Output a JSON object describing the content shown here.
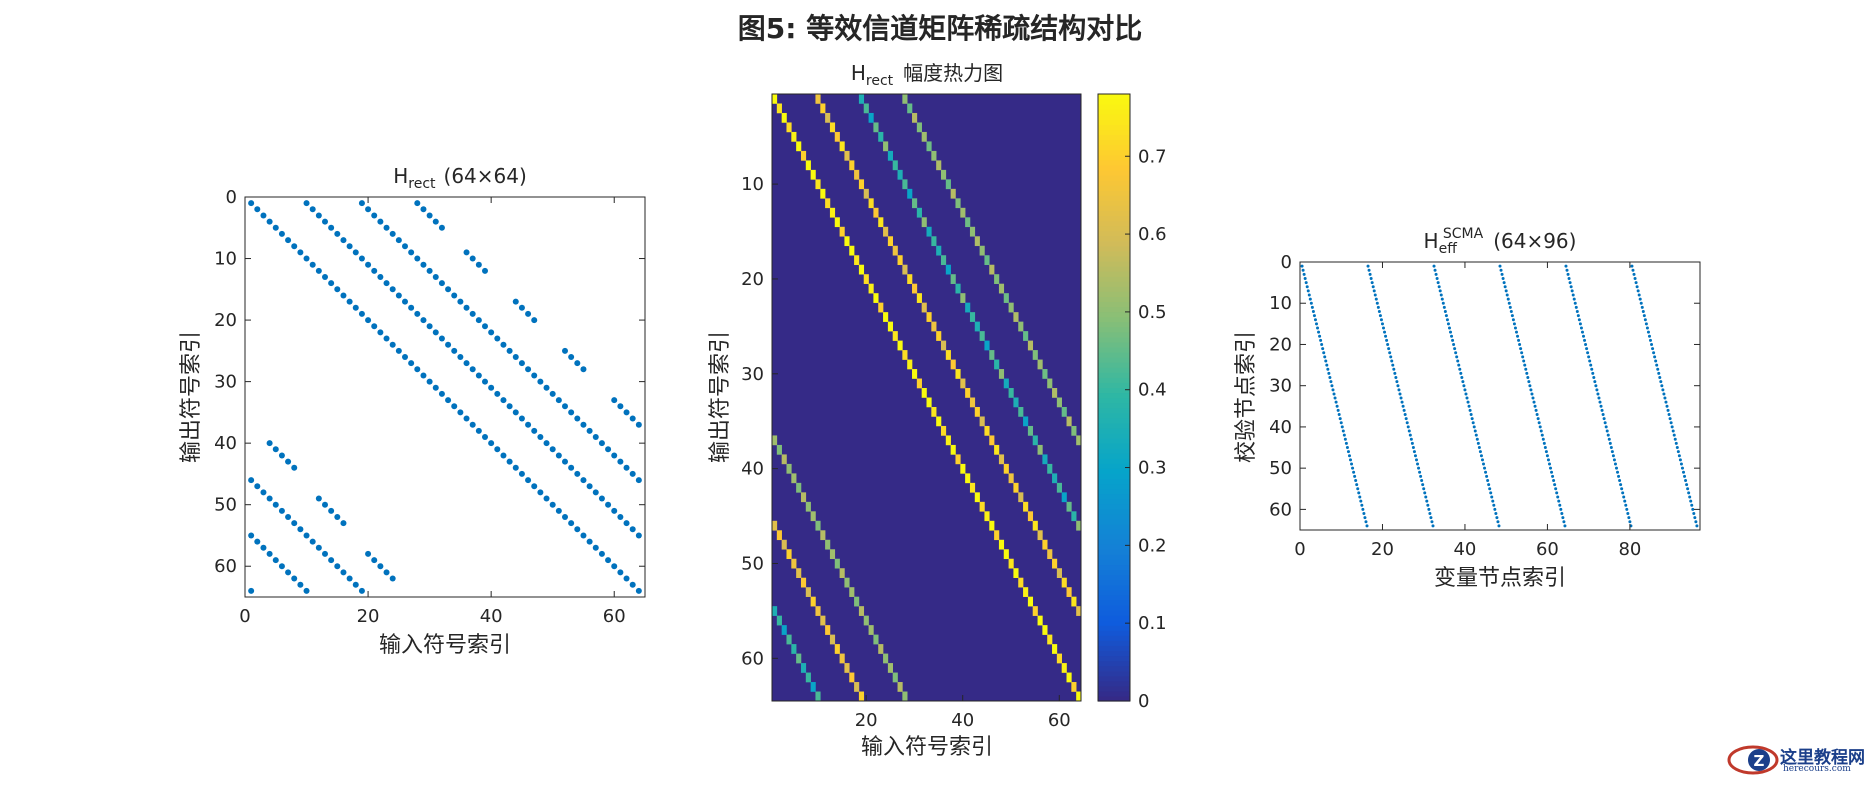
{
  "figure_title": "图5: 等效信道矩阵稀疏结构对比",
  "colors": {
    "dot": "#0072BD",
    "axis": "#262626",
    "background": "#ffffff"
  },
  "watermark": {
    "text": "这里教程网",
    "sub": "herecours.com"
  },
  "chart_data": [
    {
      "id": "spy_rect",
      "type": "scatter",
      "title_base": "H",
      "title_sub": "rect",
      "title_rest": "(64×64)",
      "xlabel": "输入符号索引",
      "ylabel": "输出符号索引",
      "xlim": [
        0,
        65
      ],
      "ylim": [
        0,
        65
      ],
      "y_reversed": true,
      "xticks": [
        0,
        20,
        40,
        60
      ],
      "yticks": [
        0,
        10,
        20,
        30,
        40,
        50,
        60
      ],
      "grid": false,
      "series": [
        {
          "values": "ones at (row,col) for col-row in {0,9,18,27} (mod 64) plus sparse off-diagonal blocks",
          "points": [
            [
              1,
              1
            ],
            [
              2,
              2
            ],
            [
              3,
              3
            ],
            [
              4,
              4
            ],
            [
              5,
              5
            ],
            [
              6,
              6
            ],
            [
              7,
              7
            ],
            [
              8,
              8
            ],
            [
              9,
              9
            ],
            [
              10,
              10
            ],
            [
              11,
              11
            ],
            [
              12,
              12
            ],
            [
              13,
              13
            ],
            [
              14,
              14
            ],
            [
              15,
              15
            ],
            [
              16,
              16
            ],
            [
              17,
              17
            ],
            [
              18,
              18
            ],
            [
              19,
              19
            ],
            [
              20,
              20
            ],
            [
              21,
              21
            ],
            [
              22,
              22
            ],
            [
              23,
              23
            ],
            [
              24,
              24
            ],
            [
              25,
              25
            ],
            [
              26,
              26
            ],
            [
              27,
              27
            ],
            [
              28,
              28
            ],
            [
              29,
              29
            ],
            [
              30,
              30
            ],
            [
              31,
              31
            ],
            [
              32,
              32
            ],
            [
              33,
              33
            ],
            [
              34,
              34
            ],
            [
              35,
              35
            ],
            [
              36,
              36
            ],
            [
              37,
              37
            ],
            [
              38,
              38
            ],
            [
              39,
              39
            ],
            [
              40,
              40
            ],
            [
              41,
              41
            ],
            [
              42,
              42
            ],
            [
              43,
              43
            ],
            [
              44,
              44
            ],
            [
              45,
              45
            ],
            [
              46,
              46
            ],
            [
              47,
              47
            ],
            [
              48,
              48
            ],
            [
              49,
              49
            ],
            [
              50,
              50
            ],
            [
              51,
              51
            ],
            [
              52,
              52
            ],
            [
              53,
              53
            ],
            [
              54,
              54
            ],
            [
              55,
              55
            ],
            [
              56,
              56
            ],
            [
              57,
              57
            ],
            [
              58,
              58
            ],
            [
              59,
              59
            ],
            [
              60,
              60
            ],
            [
              61,
              61
            ],
            [
              62,
              62
            ],
            [
              63,
              63
            ],
            [
              64,
              64
            ],
            [
              1,
              10
            ],
            [
              2,
              11
            ],
            [
              3,
              12
            ],
            [
              4,
              13
            ],
            [
              5,
              14
            ],
            [
              6,
              15
            ],
            [
              7,
              16
            ],
            [
              8,
              17
            ],
            [
              9,
              18
            ],
            [
              10,
              19
            ],
            [
              11,
              20
            ],
            [
              12,
              21
            ],
            [
              13,
              22
            ],
            [
              14,
              23
            ],
            [
              15,
              24
            ],
            [
              16,
              25
            ],
            [
              17,
              26
            ],
            [
              18,
              27
            ],
            [
              19,
              28
            ],
            [
              20,
              29
            ],
            [
              21,
              30
            ],
            [
              22,
              31
            ],
            [
              23,
              32
            ],
            [
              24,
              33
            ],
            [
              25,
              34
            ],
            [
              26,
              35
            ],
            [
              27,
              36
            ],
            [
              28,
              37
            ],
            [
              29,
              38
            ],
            [
              30,
              39
            ],
            [
              31,
              40
            ],
            [
              32,
              41
            ],
            [
              33,
              42
            ],
            [
              34,
              43
            ],
            [
              35,
              44
            ],
            [
              36,
              45
            ],
            [
              37,
              46
            ],
            [
              38,
              47
            ],
            [
              39,
              48
            ],
            [
              40,
              49
            ],
            [
              41,
              50
            ],
            [
              42,
              51
            ],
            [
              43,
              52
            ],
            [
              44,
              53
            ],
            [
              45,
              54
            ],
            [
              46,
              55
            ],
            [
              47,
              56
            ],
            [
              48,
              57
            ],
            [
              49,
              58
            ],
            [
              50,
              59
            ],
            [
              51,
              60
            ],
            [
              52,
              61
            ],
            [
              53,
              62
            ],
            [
              54,
              63
            ],
            [
              55,
              64
            ],
            [
              1,
              19
            ],
            [
              2,
              20
            ],
            [
              3,
              21
            ],
            [
              4,
              22
            ],
            [
              5,
              23
            ],
            [
              6,
              24
            ],
            [
              7,
              25
            ],
            [
              8,
              26
            ],
            [
              9,
              27
            ],
            [
              10,
              28
            ],
            [
              11,
              29
            ],
            [
              12,
              30
            ],
            [
              13,
              31
            ],
            [
              14,
              32
            ],
            [
              15,
              33
            ],
            [
              16,
              34
            ],
            [
              17,
              35
            ],
            [
              18,
              36
            ],
            [
              19,
              37
            ],
            [
              20,
              38
            ],
            [
              21,
              39
            ],
            [
              22,
              40
            ],
            [
              23,
              41
            ],
            [
              24,
              42
            ],
            [
              25,
              43
            ],
            [
              26,
              44
            ],
            [
              27,
              45
            ],
            [
              28,
              46
            ],
            [
              29,
              47
            ],
            [
              30,
              48
            ],
            [
              31,
              49
            ],
            [
              32,
              50
            ],
            [
              33,
              51
            ],
            [
              34,
              52
            ],
            [
              35,
              53
            ],
            [
              36,
              54
            ],
            [
              37,
              55
            ],
            [
              38,
              56
            ],
            [
              39,
              57
            ],
            [
              40,
              58
            ],
            [
              41,
              59
            ],
            [
              42,
              60
            ],
            [
              43,
              61
            ],
            [
              44,
              62
            ],
            [
              45,
              63
            ],
            [
              46,
              64
            ],
            [
              1,
              28
            ],
            [
              2,
              29
            ],
            [
              3,
              30
            ],
            [
              4,
              31
            ],
            [
              5,
              32
            ],
            [
              9,
              36
            ],
            [
              10,
              37
            ],
            [
              11,
              38
            ],
            [
              12,
              39
            ],
            [
              17,
              44
            ],
            [
              18,
              45
            ],
            [
              19,
              46
            ],
            [
              20,
              47
            ],
            [
              25,
              52
            ],
            [
              26,
              53
            ],
            [
              27,
              54
            ],
            [
              28,
              55
            ],
            [
              33,
              60
            ],
            [
              34,
              61
            ],
            [
              35,
              62
            ],
            [
              36,
              63
            ],
            [
              37,
              64
            ],
            [
              40,
              4
            ],
            [
              41,
              5
            ],
            [
              42,
              6
            ],
            [
              43,
              7
            ],
            [
              44,
              8
            ],
            [
              46,
              1
            ],
            [
              47,
              2
            ],
            [
              48,
              3
            ],
            [
              49,
              4
            ],
            [
              50,
              5
            ],
            [
              51,
              6
            ],
            [
              52,
              7
            ],
            [
              53,
              8
            ],
            [
              54,
              9
            ],
            [
              55,
              10
            ],
            [
              56,
              11
            ],
            [
              57,
              12
            ],
            [
              58,
              13
            ],
            [
              59,
              14
            ],
            [
              60,
              15
            ],
            [
              61,
              16
            ],
            [
              62,
              17
            ],
            [
              63,
              18
            ],
            [
              64,
              19
            ],
            [
              49,
              12
            ],
            [
              50,
              13
            ],
            [
              51,
              14
            ],
            [
              52,
              15
            ],
            [
              53,
              16
            ],
            [
              55,
              1
            ],
            [
              56,
              2
            ],
            [
              57,
              3
            ],
            [
              58,
              4
            ],
            [
              59,
              5
            ],
            [
              60,
              6
            ],
            [
              61,
              7
            ],
            [
              62,
              8
            ],
            [
              63,
              9
            ],
            [
              64,
              10
            ],
            [
              58,
              20
            ],
            [
              59,
              21
            ],
            [
              60,
              22
            ],
            [
              61,
              23
            ],
            [
              62,
              24
            ],
            [
              64,
              1
            ]
          ]
        }
      ]
    },
    {
      "id": "heatmap_rect",
      "type": "heatmap",
      "title_base": "H",
      "title_sub": "rect",
      "title_rest": "幅度热力图",
      "xlabel": "输入符号索引",
      "ylabel": "输出符号索引",
      "xlim": [
        0.5,
        64.5
      ],
      "ylim": [
        0.5,
        64.5
      ],
      "y_reversed": true,
      "xticks": [
        20,
        40,
        60
      ],
      "yticks": [
        10,
        20,
        30,
        40,
        50,
        60
      ],
      "colorbar": {
        "min": 0,
        "max": 0.78,
        "ticks": [
          0,
          0.1,
          0.2,
          0.3,
          0.4,
          0.5,
          0.6,
          0.7
        ],
        "colormap": "parula"
      },
      "background_value": 0,
      "bands": [
        {
          "offset": 0,
          "values": [
            0.78,
            0.74,
            0.78,
            0.72,
            0.76,
            0.78,
            0.7,
            0.78
          ]
        },
        {
          "offset": 9,
          "values": [
            0.65,
            0.7,
            0.6,
            0.72,
            0.68,
            0.74,
            0.62,
            0.7
          ]
        },
        {
          "offset": 18,
          "values": [
            0.35,
            0.42,
            0.3,
            0.45,
            0.38,
            0.5,
            0.33,
            0.4
          ]
        },
        {
          "offset": 27,
          "values": [
            0.5,
            0.45,
            0.55,
            0.48,
            0.52,
            0.46,
            0.5,
            0.54
          ]
        },
        {
          "offset": -54,
          "values": [
            0.35,
            0.4,
            0.3,
            0.42,
            0.38,
            0.45
          ]
        },
        {
          "offset": -45,
          "values": [
            0.62,
            0.68,
            0.6,
            0.7,
            0.65
          ]
        },
        {
          "offset": -36,
          "values": [
            0.52,
            0.48,
            0.55,
            0.5
          ]
        }
      ]
    },
    {
      "id": "spy_scma",
      "type": "scatter",
      "title_base": "H",
      "title_sub": "eff",
      "title_sup": "SCMA",
      "title_rest": "(64×96)",
      "xlabel": "变量节点索引",
      "ylabel": "校验节点索引",
      "xlim": [
        0,
        97
      ],
      "ylim": [
        0,
        65
      ],
      "y_reversed": true,
      "xticks": [
        0,
        20,
        40,
        60,
        80
      ],
      "yticks": [
        0,
        10,
        20,
        30,
        40,
        50,
        60
      ],
      "grid": false,
      "series": [
        {
          "values": "six diagonal lines, one per 16-column block: row = 4*(col - 16k - 1) + 1 .. +3",
          "blocks": [
            0,
            16,
            32,
            48,
            64,
            80
          ]
        }
      ]
    }
  ]
}
